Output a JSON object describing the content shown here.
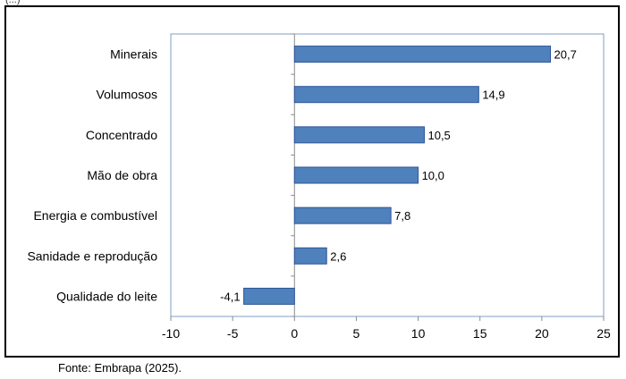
{
  "chart_data": {
    "type": "bar",
    "orientation": "horizontal",
    "categories": [
      "Minerais",
      "Volumosos",
      "Concentrado",
      "Mão de obra",
      "Energia e combustível",
      "Sanidade e reprodução",
      "Qualidade do leite"
    ],
    "values": [
      20.7,
      14.9,
      10.5,
      10.0,
      7.8,
      2.6,
      -4.1
    ],
    "value_labels": [
      "20,7",
      "14,9",
      "10,5",
      "10,0",
      "7,8",
      "2,6",
      "-4,1"
    ],
    "xlim": [
      -10,
      25
    ],
    "xticks": [
      -10,
      -5,
      0,
      5,
      10,
      15,
      20,
      25
    ],
    "xtick_labels": [
      "-10",
      "-5",
      "0",
      "5",
      "10",
      "15",
      "20",
      "25"
    ],
    "bar_color": "#4f81bd",
    "bar_border": "#2f5597",
    "plot_border_color": "#7f9fc6",
    "grid": false,
    "legend": "none"
  },
  "source_text": "Fonte: Embrapa (2025)."
}
